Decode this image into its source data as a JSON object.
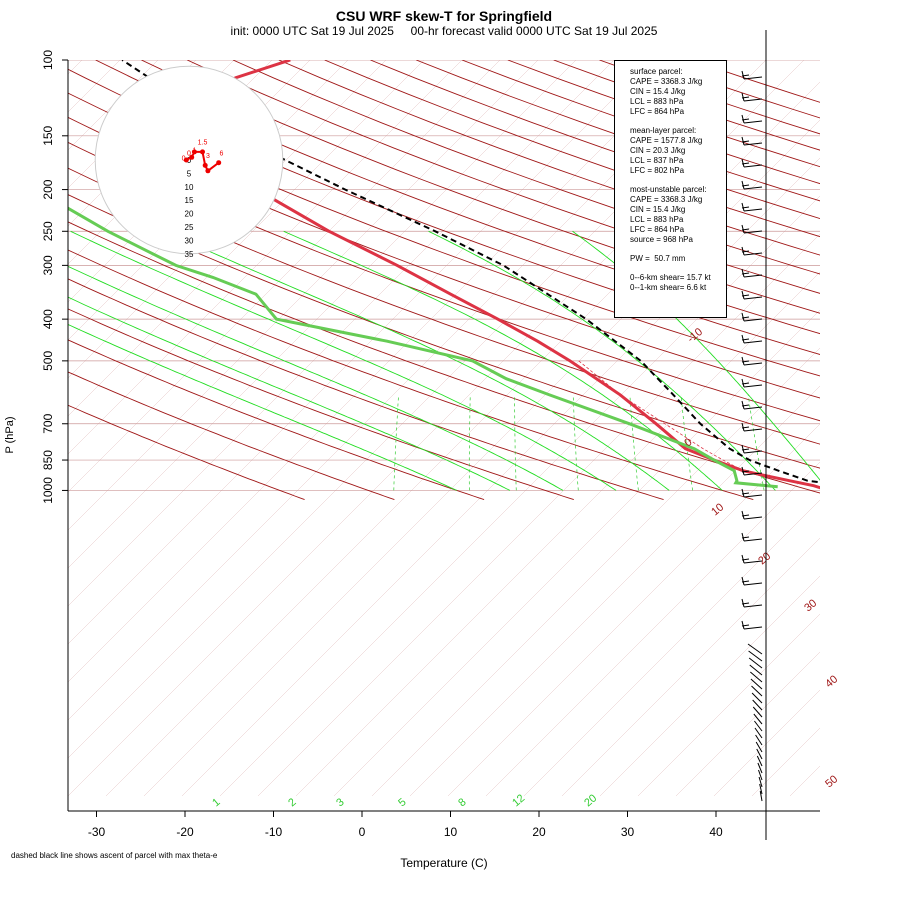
{
  "title": "CSU WRF skew-T for Springfield",
  "subtitle": "init: 0000 UTC Sat 19 Jul 2025     00-hr forecast valid 0000 UTC Sat 19 Jul 2025",
  "footnote": "dashed black line shows ascent of parcel with max theta-e",
  "info_box": {
    "surface": [
      "surface parcel:",
      "CAPE = 3368.3 J/kg",
      "CIN = 15.4 J/kg",
      "LCL = 883 hPa",
      "LFC = 864 hPa"
    ],
    "mean_layer": [
      "mean-layer parcel:",
      "CAPE = 1577.8 J/kg",
      "CIN = 20.3 J/kg",
      "LCL = 837 hPa",
      "LFC = 802 hPa"
    ],
    "most_unstable": [
      "most-unstable parcel:",
      "CAPE = 3368.3 J/kg",
      "CIN = 15.4 J/kg",
      "LCL = 883 hPa",
      "LFC = 864 hPa",
      "source = 968 hPa"
    ],
    "pw": [
      "PW =  50.7 mm"
    ],
    "shear": [
      "0--6-km shear= 15.7 kt",
      "0--1-km shear= 6.6 kt"
    ]
  },
  "chart_data": {
    "type": "line",
    "xlabel": "Temperature (C)",
    "ylabel": "P (hPa)",
    "x_ticks": [
      -30,
      -20,
      -10,
      0,
      10,
      20,
      30,
      40
    ],
    "y_ticks": [
      100,
      150,
      200,
      250,
      300,
      400,
      500,
      700,
      850,
      1000
    ],
    "isotherm_labels": [
      "-10",
      "0",
      "10",
      "20",
      "30",
      "40",
      "50"
    ],
    "mixing_ratio_labels": [
      "1",
      "2",
      "3",
      "5",
      "8",
      "12",
      "20"
    ],
    "hodograph": {
      "ring_labels": [
        "0",
        "5",
        "10",
        "15",
        "20",
        "25",
        "30",
        "35"
      ],
      "point_labels": [
        "1.5",
        "1",
        "0",
        "0",
        "3",
        "6"
      ],
      "points": [
        [
          -1,
          0
        ],
        [
          1,
          1
        ],
        [
          2,
          3
        ],
        [
          5,
          3
        ],
        [
          6,
          -2
        ],
        [
          7,
          -4
        ],
        [
          11,
          -1
        ]
      ]
    },
    "series": [
      {
        "color": "#dd3344",
        "style": "solid",
        "pressure": [
          1000,
          975,
          950,
          925,
          900,
          850,
          800,
          700,
          600,
          500,
          450,
          400,
          350,
          300,
          250,
          200,
          175,
          150,
          125,
          110,
          100
        ],
        "temperature": [
          32,
          30,
          27,
          24,
          21,
          17,
          13,
          8,
          2,
          -6,
          -11,
          -17,
          -24,
          -32,
          -42,
          -53,
          -58,
          -62,
          -65,
          -63,
          -58
        ]
      },
      {
        "color": "#dd3344",
        "style": "dashed",
        "pressure": [
          900,
          850,
          800,
          700,
          600,
          500
        ],
        "temperature": [
          21,
          18,
          15,
          9,
          2,
          -5
        ]
      },
      {
        "color": "#66cc55",
        "style": "solid",
        "pressure": [
          980,
          960,
          950,
          900,
          850,
          800,
          700,
          600,
          550,
          500,
          450,
          400,
          350,
          320,
          300,
          250,
          200,
          150,
          125,
          100
        ],
        "dewpoint": [
          26,
          21,
          21,
          20,
          17,
          14,
          5,
          -6,
          -12,
          -17,
          -28,
          -42,
          -46,
          -52,
          -57,
          -67,
          -78,
          -88,
          -92,
          -99
        ]
      },
      {
        "color": "#000000",
        "style": "dashed",
        "pressure": [
          980,
          950,
          900,
          850,
          800,
          700,
          600,
          500,
          400,
          300,
          250,
          200,
          150,
          125,
          100
        ],
        "temperature": [
          35,
          29,
          25,
          21,
          18,
          13,
          8,
          2,
          -7,
          -20,
          -30,
          -43,
          -59,
          -67,
          -77
        ]
      }
    ]
  }
}
